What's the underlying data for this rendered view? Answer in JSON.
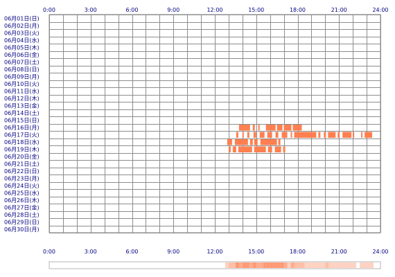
{
  "chart_data": {
    "type": "heatmap",
    "title": "",
    "xlabel": "",
    "ylabel": "",
    "x_range_hours": [
      0,
      24
    ],
    "x_ticks": [
      "0:00",
      "3:00",
      "6:00",
      "9:00",
      "12:00",
      "15:00",
      "18:00",
      "21:00",
      "24:00"
    ],
    "rows": [
      "06月01日(日)",
      "06月02日(月)",
      "06月03日(火)",
      "06月04日(水)",
      "06月05日(木)",
      "06月06日(金)",
      "06月07日(土)",
      "06月08日(日)",
      "06月09日(月)",
      "06月10日(火)",
      "06月11日(水)",
      "06月12日(木)",
      "06月13日(金)",
      "06月14日(土)",
      "06月15日(日)",
      "06月16日(月)",
      "06月17日(火)",
      "06月18日(水)",
      "06月19日(木)",
      "06月20日(金)",
      "06月21日(土)",
      "06月22日(日)",
      "06月23日(月)",
      "06月24日(火)",
      "06月25日(水)",
      "06月26日(木)",
      "06月27日(金)",
      "06月28日(土)",
      "06月29日(日)",
      "06月30日(月)"
    ],
    "activity": [
      {
        "row": "06月16日(月)",
        "segments": [
          [
            13.75,
            14.55
          ],
          [
            14.75,
            14.9
          ],
          [
            15.15,
            15.25
          ],
          [
            15.7,
            16.4
          ],
          [
            16.5,
            16.9
          ],
          [
            17.0,
            17.55
          ],
          [
            17.65,
            18.3
          ]
        ]
      },
      {
        "row": "06月17日(火)",
        "segments": [
          [
            13.55,
            13.7
          ],
          [
            14.0,
            14.1
          ],
          [
            14.35,
            14.5
          ],
          [
            14.8,
            15.0
          ],
          [
            15.25,
            15.6
          ],
          [
            15.8,
            16.15
          ],
          [
            16.4,
            16.6
          ],
          [
            16.85,
            17.25
          ],
          [
            17.5,
            17.6
          ],
          [
            17.75,
            19.35
          ],
          [
            19.5,
            19.65
          ],
          [
            19.9,
            20.05
          ],
          [
            20.2,
            20.75
          ],
          [
            20.9,
            21.05
          ],
          [
            21.25,
            21.9
          ],
          [
            22.0,
            22.1
          ],
          [
            22.6,
            22.7
          ],
          [
            22.85,
            23.4
          ]
        ]
      },
      {
        "row": "06月18日(水)",
        "segments": [
          [
            12.9,
            13.25
          ],
          [
            13.45,
            14.4
          ],
          [
            14.55,
            14.75
          ],
          [
            14.85,
            15.1
          ],
          [
            15.3,
            16.5
          ],
          [
            16.6,
            16.75
          ]
        ]
      },
      {
        "row": "06月19日(木)",
        "segments": [
          [
            13.0,
            13.15
          ],
          [
            13.3,
            13.55
          ],
          [
            13.7,
            14.7
          ],
          [
            14.85,
            15.7
          ],
          [
            15.85,
            16.15
          ],
          [
            16.35,
            16.8
          ],
          [
            16.95,
            17.1
          ]
        ]
      }
    ],
    "grid": true,
    "summary_strip": true,
    "colors": {
      "activity": "#ff7f50",
      "grid": "#8c8c8c",
      "text": "#000080",
      "strip_base": "#ffdab9",
      "strip_border": "#b4b4b4"
    }
  }
}
